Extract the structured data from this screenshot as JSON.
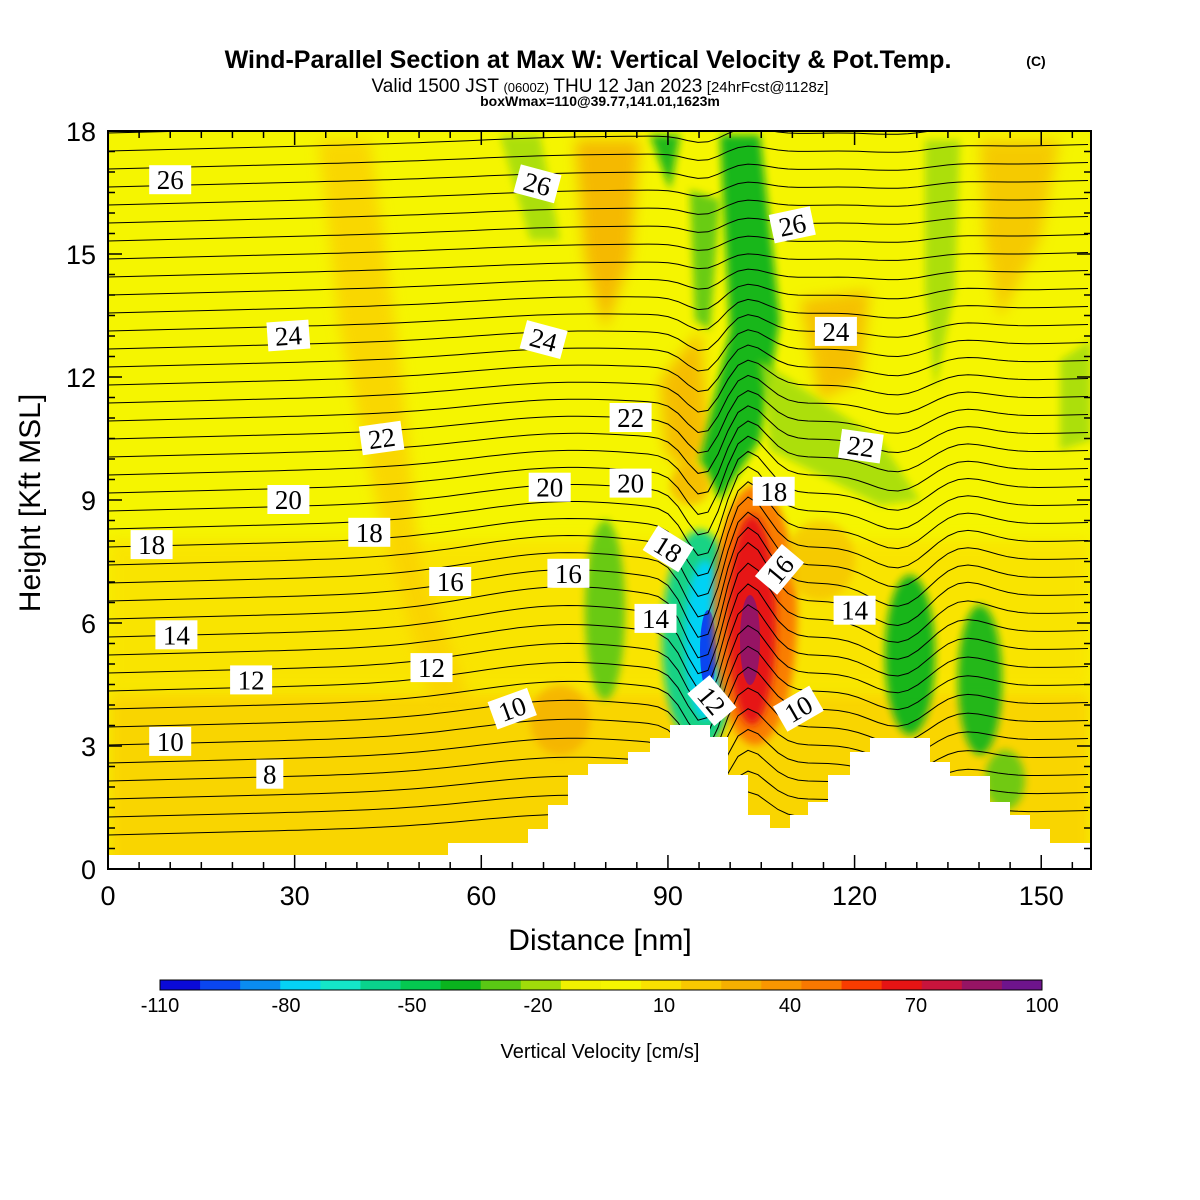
{
  "title": "Wind-Parallel Section at Max W: Vertical Velocity & Pot.Temp.",
  "copyright": "(C)",
  "subtitle_main": "Valid 1500 JST",
  "subtitle_z": "(0600Z)",
  "subtitle_date": "THU 12 Jan 2023",
  "subtitle_fcst": "[24hrFcst@1128z]",
  "subtitle2": "boxWmax=110@39.77,141.01,1623m",
  "chart_data": {
    "type": "heatmap",
    "xlabel": "Distance [nm]",
    "ylabel": "Height [Kft MSL]",
    "xlim": [
      0,
      158
    ],
    "ylim": [
      0,
      18
    ],
    "xticks": [
      0,
      30,
      60,
      90,
      120,
      150
    ],
    "yticks": [
      0,
      3,
      6,
      9,
      12,
      15,
      18
    ],
    "colorbar": {
      "label": "Vertical Velocity [cm/s]",
      "tick_labels": [
        "-110",
        "-80",
        "-50",
        "-20",
        "10",
        "40",
        "70",
        "100"
      ],
      "levels": [
        -110,
        -100,
        -90,
        -80,
        -70,
        -60,
        -50,
        -40,
        -30,
        -20,
        -10,
        0,
        10,
        20,
        30,
        40,
        50,
        60,
        70,
        80,
        90,
        100
      ],
      "colors": [
        "#0a0ad8",
        "#0a46f0",
        "#0a8cf0",
        "#05d2f5",
        "#14e6c8",
        "#0ad28c",
        "#05c850",
        "#0ab41e",
        "#5ac814",
        "#a0dc0a",
        "#f0f000",
        "#f5f500",
        "#fae100",
        "#fac800",
        "#f5af00",
        "#fa9600",
        "#fa7800",
        "#fa3c00",
        "#e61414",
        "#c8143c",
        "#961464",
        "#6e148c"
      ]
    },
    "isentrope_labels": [
      {
        "text": "26",
        "x": 10,
        "y": 16.8,
        "angle": 0
      },
      {
        "text": "26",
        "x": 69,
        "y": 16.7,
        "angle": 15
      },
      {
        "text": "26",
        "x": 110,
        "y": 15.7,
        "angle": -12
      },
      {
        "text": "24",
        "x": 29,
        "y": 13.0,
        "angle": -4
      },
      {
        "text": "24",
        "x": 70,
        "y": 12.9,
        "angle": 15
      },
      {
        "text": "24",
        "x": 117,
        "y": 13.1,
        "angle": 0
      },
      {
        "text": "22",
        "x": 44,
        "y": 10.5,
        "angle": -8
      },
      {
        "text": "22",
        "x": 84,
        "y": 11.0,
        "angle": 0
      },
      {
        "text": "22",
        "x": 121,
        "y": 10.3,
        "angle": 8
      },
      {
        "text": "20",
        "x": 29,
        "y": 9.0,
        "angle": 0
      },
      {
        "text": "20",
        "x": 71,
        "y": 9.3,
        "angle": 0
      },
      {
        "text": "20",
        "x": 84,
        "y": 9.4,
        "angle": 0
      },
      {
        "text": "18",
        "x": 7,
        "y": 7.9,
        "angle": 0
      },
      {
        "text": "18",
        "x": 42,
        "y": 8.2,
        "angle": 0
      },
      {
        "text": "18",
        "x": 90,
        "y": 7.8,
        "angle": 32
      },
      {
        "text": "18",
        "x": 107,
        "y": 9.2,
        "angle": 0
      },
      {
        "text": "16",
        "x": 55,
        "y": 7.0,
        "angle": 0
      },
      {
        "text": "16",
        "x": 74,
        "y": 7.2,
        "angle": 0
      },
      {
        "text": "16",
        "x": 108,
        "y": 7.3,
        "angle": -50
      },
      {
        "text": "14",
        "x": 11,
        "y": 5.7,
        "angle": 0
      },
      {
        "text": "14",
        "x": 88,
        "y": 6.1,
        "angle": 0
      },
      {
        "text": "14",
        "x": 120,
        "y": 6.3,
        "angle": 0
      },
      {
        "text": "12",
        "x": 23,
        "y": 4.6,
        "angle": 0
      },
      {
        "text": "12",
        "x": 52,
        "y": 4.9,
        "angle": 0
      },
      {
        "text": "12",
        "x": 97,
        "y": 4.1,
        "angle": 50
      },
      {
        "text": "10",
        "x": 10,
        "y": 3.1,
        "angle": 0
      },
      {
        "text": "10",
        "x": 65,
        "y": 3.9,
        "angle": -20
      },
      {
        "text": "10",
        "x": 111,
        "y": 3.9,
        "angle": -30
      },
      {
        "text": "8",
        "x": 26,
        "y": 2.3,
        "angle": 0
      }
    ]
  }
}
